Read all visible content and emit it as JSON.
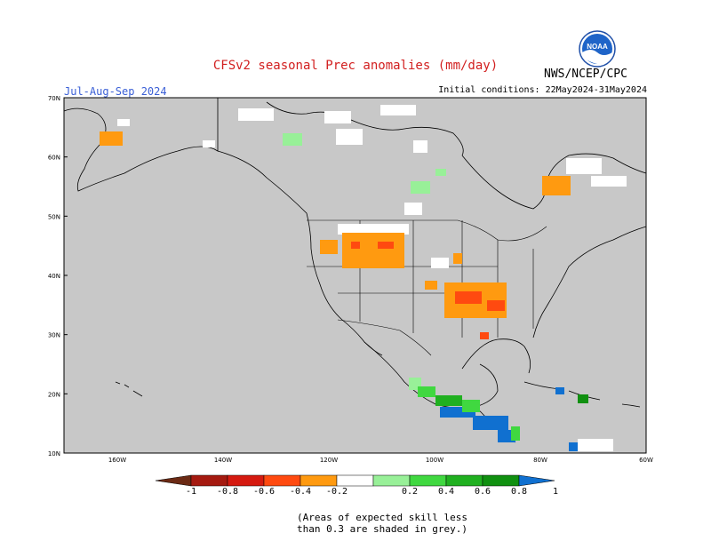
{
  "header": {
    "title": "CFSv2 seasonal Prec anomalies (mm/day)",
    "org": "NWS/NCEP/CPC",
    "period": "Jul-Aug-Sep 2024",
    "initial_conditions": "Initial conditions: 22May2024-31May2024",
    "logo_text": "NOAA"
  },
  "map": {
    "lat_ticks": [
      "70N",
      "60N",
      "50N",
      "40N",
      "30N",
      "20N",
      "10N"
    ],
    "lon_ticks": [
      "160W",
      "140W",
      "120W",
      "100W",
      "80W",
      "60W"
    ],
    "land_color": "#c8c8c8",
    "no_anomaly_color": "#ffffff"
  },
  "colorbar": {
    "labels": [
      "-1",
      "-0.8",
      "-0.6",
      "-0.4",
      "-0.2",
      "0.2",
      "0.4",
      "0.6",
      "0.8",
      "1"
    ],
    "colors": [
      "#6b2a14",
      "#a51a10",
      "#d51a10",
      "#ff4a10",
      "#ff9a10",
      "#ffffff",
      "#98f098",
      "#40d840",
      "#20b020",
      "#109010",
      "#1070d0"
    ]
  },
  "note": {
    "line1": "(Areas of expected skill less",
    "line2": "than 0.3 are shaded in grey.)"
  }
}
